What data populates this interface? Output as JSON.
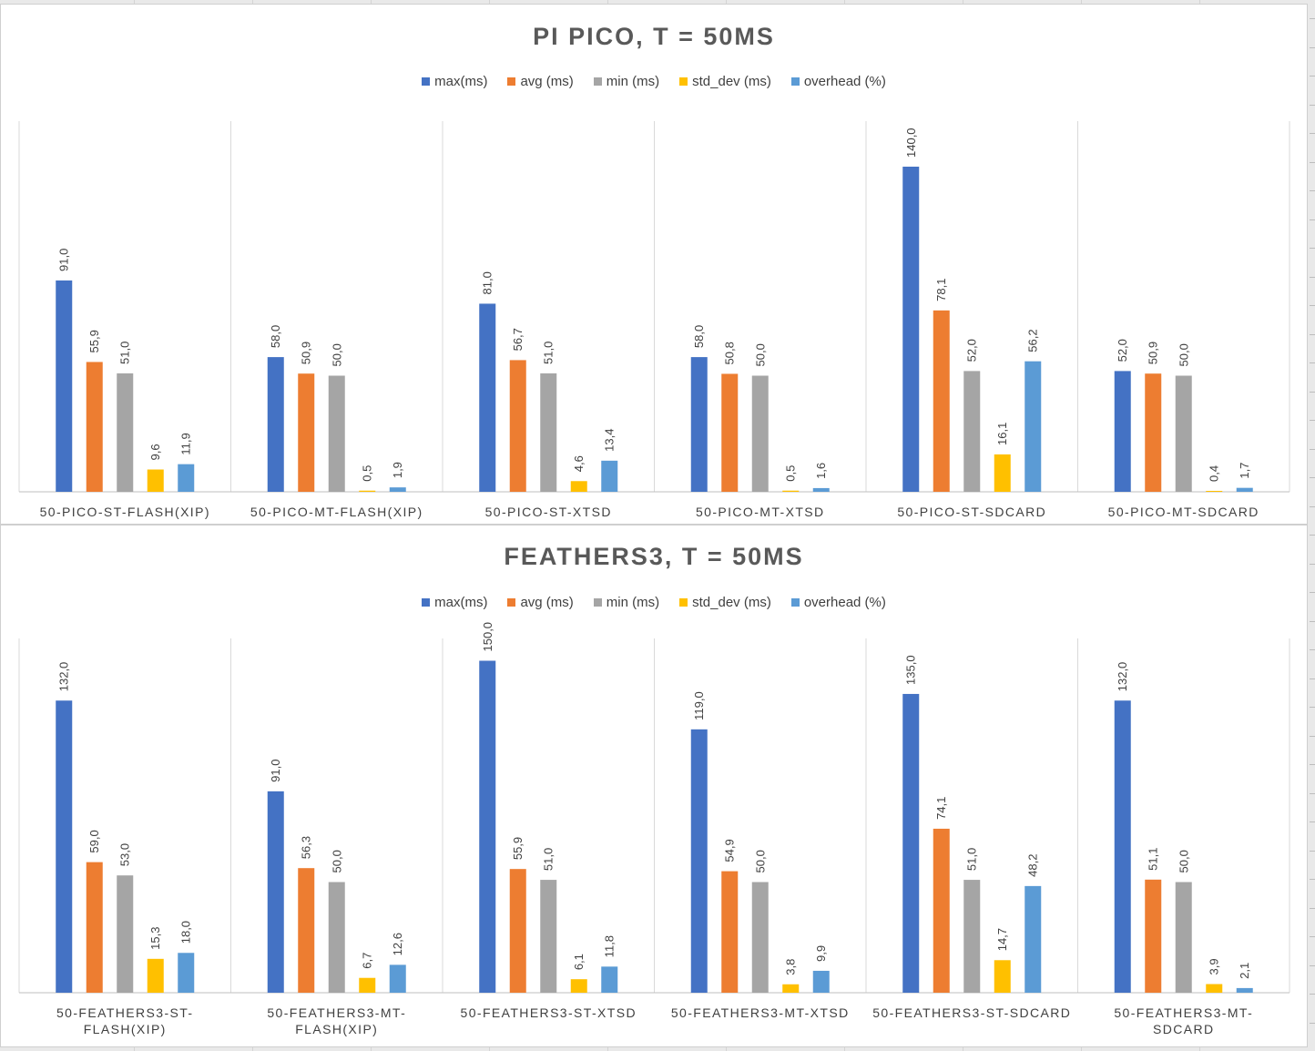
{
  "colors": {
    "max": "#4472C4",
    "avg": "#ED7D31",
    "min": "#A5A5A5",
    "std_dev": "#FFC000",
    "overhead": "#5B9BD5"
  },
  "chart_data": [
    {
      "type": "bar",
      "title": "PI PICO, T = 50MS",
      "categories": [
        "50-PICO-ST-FLASH(XIP)",
        "50-PICO-MT-FLASH(XIP)",
        "50-PICO-ST-XTSD",
        "50-PICO-MT-XTSD",
        "50-PICO-ST-SDCARD",
        "50-PICO-MT-SDCARD"
      ],
      "series": [
        {
          "name": "max(ms)",
          "key": "max",
          "values": [
            91.0,
            58.0,
            81.0,
            58.0,
            140.0,
            52.0
          ]
        },
        {
          "name": "avg (ms)",
          "key": "avg",
          "values": [
            55.9,
            50.9,
            56.7,
            50.8,
            78.1,
            50.9
          ]
        },
        {
          "name": "min (ms)",
          "key": "min",
          "values": [
            51.0,
            50.0,
            51.0,
            50.0,
            52.0,
            50.0
          ]
        },
        {
          "name": "std_dev (ms)",
          "key": "std_dev",
          "values": [
            9.6,
            0.5,
            4.6,
            0.5,
            16.1,
            0.4
          ]
        },
        {
          "name": "overhead (%)",
          "key": "overhead",
          "values": [
            11.9,
            1.9,
            13.4,
            1.6,
            56.2,
            1.7
          ]
        }
      ],
      "data_labels": [
        [
          "91,0",
          "58,0",
          "81,0",
          "58,0",
          "140,0",
          "52,0"
        ],
        [
          "55,9",
          "50,9",
          "56,7",
          "50,8",
          "78,1",
          "50,9"
        ],
        [
          "51,0",
          "50,0",
          "51,0",
          "50,0",
          "52,0",
          "50,0"
        ],
        [
          "9,6",
          "0,5",
          "4,6",
          "0,5",
          "16,1",
          "0,4"
        ],
        [
          "11,9",
          "1,9",
          "13,4",
          "1,6",
          "56,2",
          "1,7"
        ]
      ],
      "ylim": [
        0,
        140
      ],
      "grid": false,
      "legend_position": "top"
    },
    {
      "type": "bar",
      "title": "FEATHERS3, T = 50MS",
      "categories": [
        [
          "50-FEATHERS3-ST-",
          "FLASH(XIP)"
        ],
        [
          "50-FEATHERS3-MT-",
          "FLASH(XIP)"
        ],
        [
          "50-FEATHERS3-ST-XTSD"
        ],
        [
          "50-FEATHERS3-MT-XTSD"
        ],
        [
          "50-FEATHERS3-ST-SDCARD"
        ],
        [
          "50-FEATHERS3-MT-",
          "SDCARD"
        ]
      ],
      "series": [
        {
          "name": "max(ms)",
          "key": "max",
          "values": [
            132.0,
            91.0,
            150.0,
            119.0,
            135.0,
            132.0
          ]
        },
        {
          "name": "avg (ms)",
          "key": "avg",
          "values": [
            59.0,
            56.3,
            55.9,
            54.9,
            74.1,
            51.1
          ]
        },
        {
          "name": "min (ms)",
          "key": "min",
          "values": [
            53.0,
            50.0,
            51.0,
            50.0,
            51.0,
            50.0
          ]
        },
        {
          "name": "std_dev (ms)",
          "key": "std_dev",
          "values": [
            15.3,
            6.7,
            6.1,
            3.8,
            14.7,
            3.9
          ]
        },
        {
          "name": "overhead (%)",
          "key": "overhead",
          "values": [
            18.0,
            12.6,
            11.8,
            9.9,
            48.2,
            2.1
          ]
        }
      ],
      "data_labels": [
        [
          "132,0",
          "91,0",
          "150,0",
          "119,0",
          "135,0",
          "132,0"
        ],
        [
          "59,0",
          "56,3",
          "55,9",
          "54,9",
          "74,1",
          "51,1"
        ],
        [
          "53,0",
          "50,0",
          "51,0",
          "50,0",
          "51,0",
          "50,0"
        ],
        [
          "15,3",
          "6,7",
          "6,1",
          "3,8",
          "14,7",
          "3,9"
        ],
        [
          "18,0",
          "12,6",
          "11,8",
          "9,9",
          "48,2",
          "2,1"
        ]
      ],
      "ylim": [
        0,
        150
      ],
      "grid": false,
      "legend_position": "top"
    }
  ]
}
